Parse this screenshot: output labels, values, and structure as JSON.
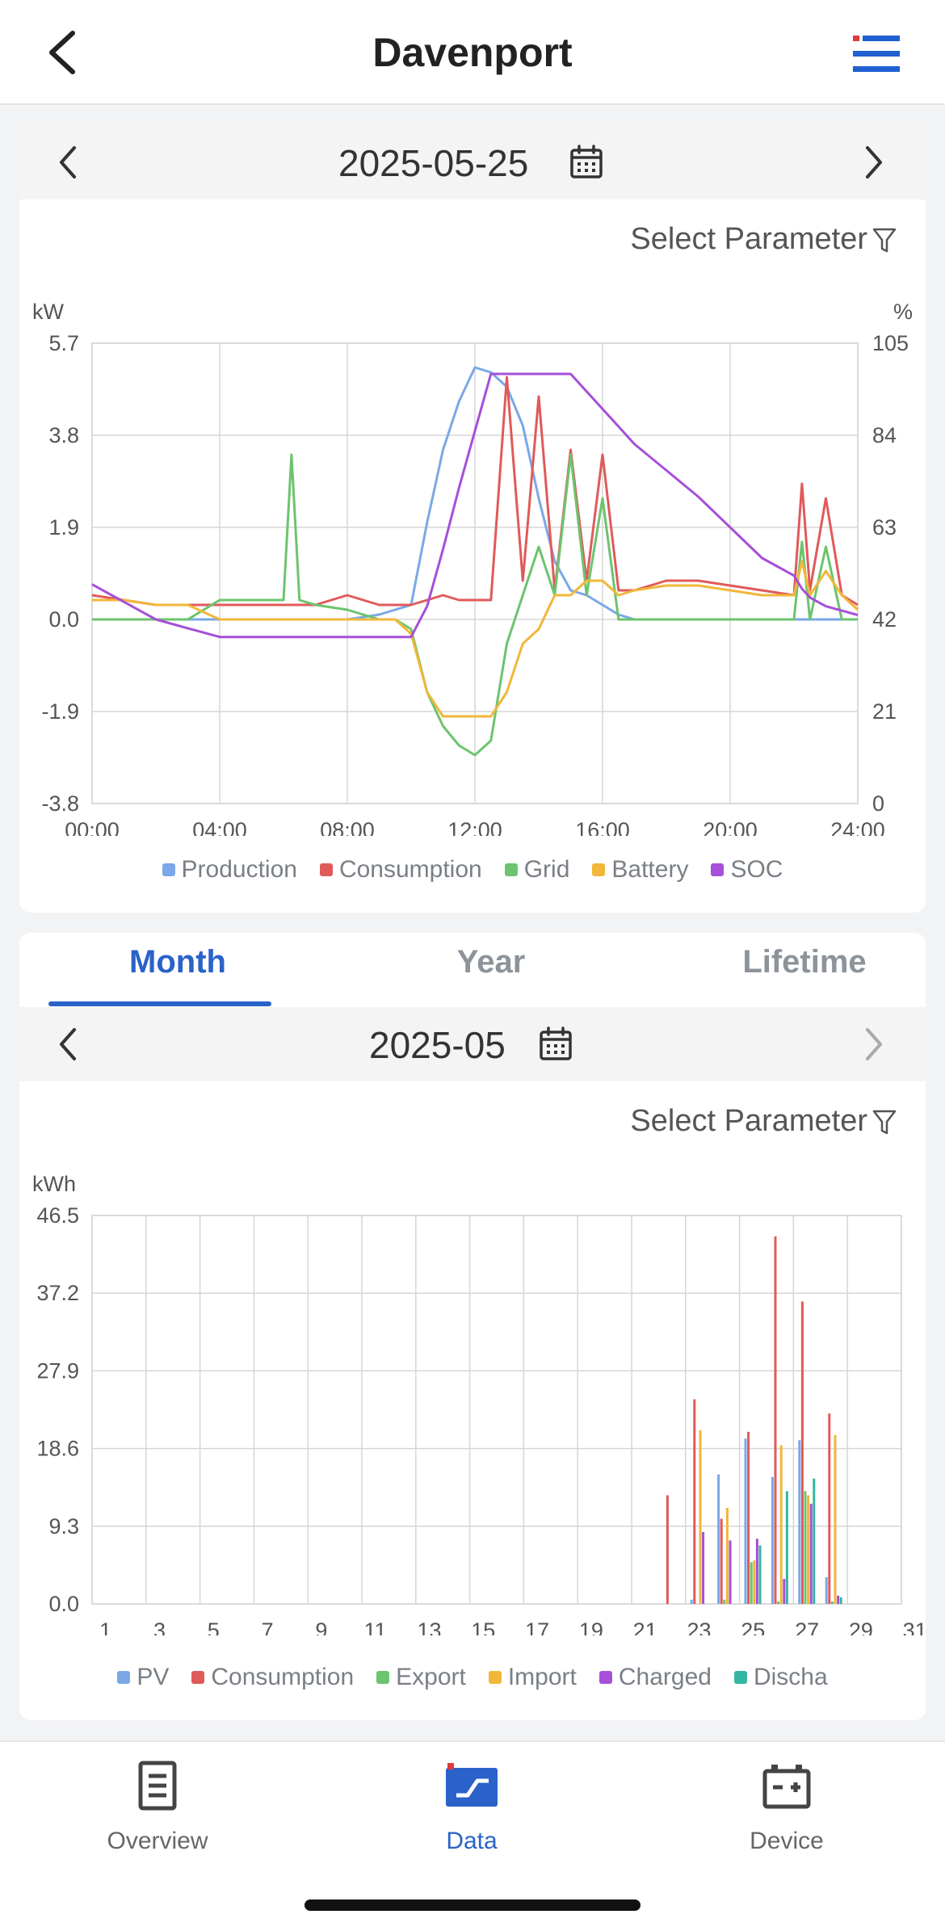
{
  "header": {
    "title": "Davenport"
  },
  "day": {
    "date": "2025-05-25",
    "select_label": "Select Parameter",
    "left_unit": "kW",
    "right_unit": "%",
    "left_ticks": [
      "5.7",
      "3.8",
      "1.9",
      "0.0",
      "-1.9",
      "-3.8"
    ],
    "right_ticks": [
      "105",
      "84",
      "63",
      "42",
      "21",
      "0"
    ],
    "x_ticks": [
      "00:00",
      "04:00",
      "08:00",
      "12:00",
      "16:00",
      "20:00",
      "24:00"
    ],
    "legend": [
      "Production",
      "Consumption",
      "Grid",
      "Battery",
      "SOC"
    ]
  },
  "tabs": [
    "Month",
    "Year",
    "Lifetime"
  ],
  "month": {
    "date": "2025-05",
    "select_label": "Select Parameter",
    "unit": "kWh",
    "y_ticks": [
      "46.5",
      "37.2",
      "27.9",
      "18.6",
      "9.3",
      "0.0"
    ],
    "legend": [
      "PV",
      "Consumption",
      "Export",
      "Import",
      "Charged",
      "Discha"
    ]
  },
  "nav": [
    {
      "label": "Overview"
    },
    {
      "label": "Data"
    },
    {
      "label": "Device"
    }
  ],
  "colors": {
    "production": "#7aa8e8",
    "consumption": "#e05a5a",
    "grid": "#6cc46e",
    "battery": "#f1b73a",
    "soc": "#a64fd9",
    "export": "#6cc46e",
    "discharged": "#35b5a3",
    "accent": "#2a62c9"
  },
  "chart_data": [
    {
      "type": "line",
      "xlabel": "",
      "ylabel": "kW",
      "ylabel_right": "%",
      "x": [
        "00:00",
        "01:00",
        "02:00",
        "03:00",
        "04:00",
        "05:00",
        "06:00",
        "06:15",
        "06:30",
        "07:00",
        "08:00",
        "09:00",
        "09:30",
        "10:00",
        "10:30",
        "11:00",
        "11:30",
        "12:00",
        "12:30",
        "13:00",
        "13:30",
        "14:00",
        "14:30",
        "15:00",
        "15:30",
        "16:00",
        "16:30",
        "17:00",
        "18:00",
        "19:00",
        "20:00",
        "21:00",
        "22:00",
        "22:15",
        "22:30",
        "23:00",
        "23:30",
        "24:00"
      ],
      "ylim": [
        -3.8,
        5.7
      ],
      "ylim_right": [
        0,
        105
      ],
      "series": [
        {
          "name": "Production",
          "axis": "left",
          "values": [
            0,
            0,
            0,
            0,
            0,
            0,
            0,
            0,
            0,
            0,
            0,
            0.1,
            0.2,
            0.3,
            2.0,
            3.5,
            4.5,
            5.2,
            5.1,
            4.8,
            4.0,
            2.5,
            1.2,
            0.6,
            0.5,
            0.3,
            0.1,
            0,
            0,
            0,
            0,
            0,
            0,
            0,
            0,
            0,
            0,
            0
          ]
        },
        {
          "name": "Consumption",
          "axis": "left",
          "values": [
            0.5,
            0.4,
            0.3,
            0.3,
            0.3,
            0.3,
            0.3,
            0.3,
            0.3,
            0.3,
            0.5,
            0.3,
            0.3,
            0.3,
            0.4,
            0.5,
            0.4,
            0.4,
            0.4,
            5.0,
            0.8,
            4.6,
            0.6,
            3.5,
            0.8,
            3.4,
            0.6,
            0.6,
            0.8,
            0.8,
            0.7,
            0.6,
            0.5,
            2.8,
            0.6,
            2.5,
            0.5,
            0.3
          ]
        },
        {
          "name": "Grid",
          "axis": "left",
          "values": [
            0.0,
            0.0,
            0.0,
            0.0,
            0.4,
            0.4,
            0.4,
            3.4,
            0.4,
            0.3,
            0.2,
            0.0,
            0.0,
            -0.2,
            -1.5,
            -2.2,
            -2.6,
            -2.8,
            -2.5,
            -0.5,
            0.5,
            1.5,
            0.5,
            3.4,
            0.5,
            2.5,
            0.0,
            0.0,
            0.0,
            0.0,
            0.0,
            0.0,
            0.0,
            1.6,
            0.0,
            1.5,
            0.0,
            0.0
          ]
        },
        {
          "name": "Battery",
          "axis": "left",
          "values": [
            0.4,
            0.4,
            0.3,
            0.3,
            0.0,
            0.0,
            0.0,
            0.0,
            0.0,
            0.0,
            0.0,
            0.0,
            0.0,
            -0.3,
            -1.5,
            -2.0,
            -2.0,
            -2.0,
            -2.0,
            -1.5,
            -0.5,
            -0.2,
            0.5,
            0.5,
            0.8,
            0.8,
            0.5,
            0.6,
            0.7,
            0.7,
            0.6,
            0.5,
            0.5,
            1.2,
            0.5,
            1.0,
            0.5,
            0.2
          ]
        },
        {
          "name": "SOC",
          "axis": "right",
          "values": [
            50,
            46,
            42,
            40,
            38,
            38,
            38,
            38,
            38,
            38,
            38,
            38,
            38,
            38,
            45,
            58,
            72,
            85,
            98,
            98,
            98,
            98,
            98,
            98,
            94,
            90,
            86,
            82,
            76,
            70,
            63,
            56,
            52,
            49,
            47,
            45,
            44,
            43
          ]
        }
      ]
    },
    {
      "type": "bar",
      "ylabel": "kWh",
      "categories": [
        "1",
        "2",
        "3",
        "4",
        "5",
        "6",
        "7",
        "8",
        "9",
        "10",
        "11",
        "12",
        "13",
        "14",
        "15",
        "16",
        "17",
        "18",
        "19",
        "20",
        "21",
        "22",
        "23",
        "24",
        "25",
        "26",
        "27",
        "28",
        "29",
        "30",
        "31"
      ],
      "x_tick_labels": [
        "1",
        "3",
        "5",
        "7",
        "9",
        "11",
        "13",
        "15",
        "17",
        "19",
        "21",
        "23",
        "25",
        "27",
        "29",
        "31"
      ],
      "ylim": [
        0,
        46.5
      ],
      "series": [
        {
          "name": "PV",
          "values": [
            0,
            0,
            0,
            0,
            0,
            0,
            0,
            0,
            0,
            0,
            0,
            0,
            0,
            0,
            0,
            0,
            0,
            0,
            0,
            0,
            0,
            0,
            0.5,
            15.5,
            19.8,
            15.2,
            19.6,
            3.2,
            0,
            0,
            0
          ]
        },
        {
          "name": "Consumption",
          "values": [
            0,
            0,
            0,
            0,
            0,
            0,
            0,
            0,
            0,
            0,
            0,
            0,
            0,
            0,
            0,
            0,
            0,
            0,
            0,
            0,
            0,
            13.0,
            24.5,
            10.2,
            20.6,
            44.0,
            36.2,
            22.8,
            0,
            0,
            0
          ]
        },
        {
          "name": "Export",
          "values": [
            0,
            0,
            0,
            0,
            0,
            0,
            0,
            0,
            0,
            0,
            0,
            0,
            0,
            0,
            0,
            0,
            0,
            0,
            0,
            0,
            0,
            0,
            0,
            0.5,
            5.0,
            0.3,
            13.5,
            0.3,
            0,
            0,
            0
          ]
        },
        {
          "name": "Import",
          "values": [
            0,
            0,
            0,
            0,
            0,
            0,
            0,
            0,
            0,
            0,
            0,
            0,
            0,
            0,
            0,
            0,
            0,
            0,
            0,
            0,
            0,
            0,
            20.8,
            11.5,
            5.2,
            19.0,
            13.0,
            20.2,
            0,
            0,
            0
          ]
        },
        {
          "name": "Charged",
          "values": [
            0,
            0,
            0,
            0,
            0,
            0,
            0,
            0,
            0,
            0,
            0,
            0,
            0,
            0,
            0,
            0,
            0,
            0,
            0,
            0,
            0,
            0,
            8.6,
            7.6,
            7.8,
            3.0,
            12.0,
            1.0,
            0,
            0,
            0
          ]
        },
        {
          "name": "Discha",
          "values": [
            0,
            0,
            0,
            0,
            0,
            0,
            0,
            0,
            0,
            0,
            0,
            0,
            0,
            0,
            0,
            0,
            0,
            0,
            0,
            0,
            0,
            0,
            0,
            0,
            7.0,
            13.5,
            15.0,
            0.8,
            0,
            0,
            0
          ]
        }
      ]
    }
  ]
}
